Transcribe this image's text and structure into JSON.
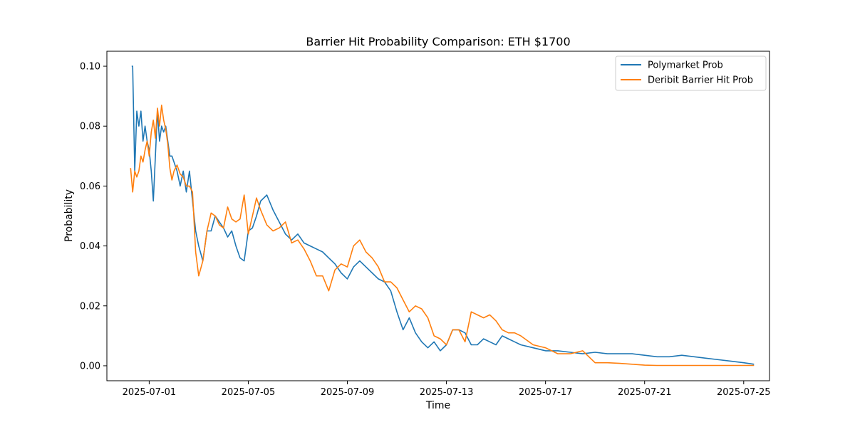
{
  "chart_data": {
    "type": "line",
    "title": "Barrier Hit Probability Comparison: ETH $1700",
    "xlabel": "Time",
    "ylabel": "Probability",
    "xlim": [
      "2025-06-29T07:00",
      "2025-07-26T01:00"
    ],
    "ylim": [
      -0.005,
      0.105
    ],
    "x_ticks": [
      "2025-07-01",
      "2025-07-05",
      "2025-07-09",
      "2025-07-13",
      "2025-07-17",
      "2025-07-21",
      "2025-07-25"
    ],
    "y_ticks": [
      "0.00",
      "0.02",
      "0.04",
      "0.06",
      "0.08",
      "0.10"
    ],
    "y_tick_values": [
      0.0,
      0.02,
      0.04,
      0.06,
      0.08,
      0.1
    ],
    "grid": false,
    "legend_position": "top-right",
    "series": [
      {
        "name": "Polymarket Prob",
        "color": "#1f77b4",
        "x": [
          "2025-06-30T07:00",
          "2025-06-30T08:00",
          "2025-06-30T10:00",
          "2025-06-30T12:00",
          "2025-06-30T14:00",
          "2025-06-30T16:00",
          "2025-06-30T18:00",
          "2025-06-30T20:00",
          "2025-06-30T22:00",
          "2025-07-01T00:00",
          "2025-07-01T02:00",
          "2025-07-01T04:00",
          "2025-07-01T06:00",
          "2025-07-01T08:00",
          "2025-07-01T10:00",
          "2025-07-01T12:00",
          "2025-07-01T14:00",
          "2025-07-01T16:00",
          "2025-07-01T18:00",
          "2025-07-01T20:00",
          "2025-07-01T22:00",
          "2025-07-02T00:00",
          "2025-07-02T03:00",
          "2025-07-02T06:00",
          "2025-07-02T09:00",
          "2025-07-02T12:00",
          "2025-07-02T15:00",
          "2025-07-02T18:00",
          "2025-07-02T21:00",
          "2025-07-03T00:00",
          "2025-07-03T04:00",
          "2025-07-03T08:00",
          "2025-07-03T12:00",
          "2025-07-03T16:00",
          "2025-07-03T20:00",
          "2025-07-04T00:00",
          "2025-07-04T04:00",
          "2025-07-04T08:00",
          "2025-07-04T12:00",
          "2025-07-04T16:00",
          "2025-07-04T20:00",
          "2025-07-05T00:00",
          "2025-07-05T04:00",
          "2025-07-05T08:00",
          "2025-07-05T12:00",
          "2025-07-05T18:00",
          "2025-07-06T00:00",
          "2025-07-06T06:00",
          "2025-07-06T12:00",
          "2025-07-06T18:00",
          "2025-07-07T00:00",
          "2025-07-07T06:00",
          "2025-07-07T12:00",
          "2025-07-07T18:00",
          "2025-07-08T00:00",
          "2025-07-08T06:00",
          "2025-07-08T12:00",
          "2025-07-08T18:00",
          "2025-07-09T00:00",
          "2025-07-09T06:00",
          "2025-07-09T12:00",
          "2025-07-09T18:00",
          "2025-07-10T00:00",
          "2025-07-10T06:00",
          "2025-07-10T12:00",
          "2025-07-10T18:00",
          "2025-07-11T00:00",
          "2025-07-11T06:00",
          "2025-07-11T12:00",
          "2025-07-11T18:00",
          "2025-07-12T00:00",
          "2025-07-12T06:00",
          "2025-07-12T12:00",
          "2025-07-12T18:00",
          "2025-07-13T00:00",
          "2025-07-13T06:00",
          "2025-07-13T12:00",
          "2025-07-13T18:00",
          "2025-07-14T00:00",
          "2025-07-14T06:00",
          "2025-07-14T12:00",
          "2025-07-14T18:00",
          "2025-07-15T00:00",
          "2025-07-15T06:00",
          "2025-07-15T12:00",
          "2025-07-15T18:00",
          "2025-07-16T00:00",
          "2025-07-16T12:00",
          "2025-07-17T00:00",
          "2025-07-17T12:00",
          "2025-07-18T00:00",
          "2025-07-18T12:00",
          "2025-07-19T00:00",
          "2025-07-19T12:00",
          "2025-07-20T00:00",
          "2025-07-20T12:00",
          "2025-07-21T00:00",
          "2025-07-21T12:00",
          "2025-07-22T00:00",
          "2025-07-22T12:00",
          "2025-07-23T00:00",
          "2025-07-23T12:00",
          "2025-07-24T00:00",
          "2025-07-24T12:00",
          "2025-07-25T00:00",
          "2025-07-25T10:00"
        ],
        "y": [
          0.1,
          0.1,
          0.065,
          0.085,
          0.08,
          0.085,
          0.075,
          0.08,
          0.075,
          0.072,
          0.065,
          0.055,
          0.07,
          0.085,
          0.075,
          0.08,
          0.078,
          0.08,
          0.075,
          0.07,
          0.07,
          0.068,
          0.065,
          0.06,
          0.065,
          0.058,
          0.065,
          0.055,
          0.045,
          0.04,
          0.035,
          0.045,
          0.045,
          0.05,
          0.048,
          0.046,
          0.043,
          0.045,
          0.04,
          0.036,
          0.035,
          0.045,
          0.046,
          0.05,
          0.055,
          0.057,
          0.052,
          0.048,
          0.044,
          0.042,
          0.044,
          0.041,
          0.04,
          0.039,
          0.038,
          0.036,
          0.034,
          0.031,
          0.029,
          0.033,
          0.035,
          0.033,
          0.031,
          0.029,
          0.028,
          0.025,
          0.018,
          0.012,
          0.016,
          0.011,
          0.008,
          0.006,
          0.008,
          0.005,
          0.007,
          0.012,
          0.012,
          0.011,
          0.007,
          0.007,
          0.009,
          0.008,
          0.007,
          0.01,
          0.009,
          0.008,
          0.007,
          0.006,
          0.005,
          0.005,
          0.0045,
          0.004,
          0.0045,
          0.004,
          0.004,
          0.004,
          0.0035,
          0.003,
          0.003,
          0.0035,
          0.003,
          0.0025,
          0.002,
          0.0015,
          0.001,
          0.0005
        ]
      },
      {
        "name": "Deribit Barrier Hit Prob",
        "color": "#ff7f0e",
        "x": [
          "2025-06-30T06:00",
          "2025-06-30T08:00",
          "2025-06-30T10:00",
          "2025-06-30T12:00",
          "2025-06-30T14:00",
          "2025-06-30T16:00",
          "2025-06-30T18:00",
          "2025-06-30T20:00",
          "2025-06-30T22:00",
          "2025-07-01T00:00",
          "2025-07-01T02:00",
          "2025-07-01T04:00",
          "2025-07-01T06:00",
          "2025-07-01T08:00",
          "2025-07-01T10:00",
          "2025-07-01T12:00",
          "2025-07-01T14:00",
          "2025-07-01T16:00",
          "2025-07-01T18:00",
          "2025-07-01T20:00",
          "2025-07-01T22:00",
          "2025-07-02T00:00",
          "2025-07-02T03:00",
          "2025-07-02T06:00",
          "2025-07-02T09:00",
          "2025-07-02T12:00",
          "2025-07-02T15:00",
          "2025-07-02T18:00",
          "2025-07-02T21:00",
          "2025-07-03T00:00",
          "2025-07-03T04:00",
          "2025-07-03T08:00",
          "2025-07-03T12:00",
          "2025-07-03T16:00",
          "2025-07-03T20:00",
          "2025-07-04T00:00",
          "2025-07-04T04:00",
          "2025-07-04T08:00",
          "2025-07-04T12:00",
          "2025-07-04T16:00",
          "2025-07-04T20:00",
          "2025-07-05T00:00",
          "2025-07-05T04:00",
          "2025-07-05T08:00",
          "2025-07-05T12:00",
          "2025-07-05T18:00",
          "2025-07-06T00:00",
          "2025-07-06T06:00",
          "2025-07-06T12:00",
          "2025-07-06T18:00",
          "2025-07-07T00:00",
          "2025-07-07T06:00",
          "2025-07-07T12:00",
          "2025-07-07T18:00",
          "2025-07-08T00:00",
          "2025-07-08T06:00",
          "2025-07-08T12:00",
          "2025-07-08T18:00",
          "2025-07-09T00:00",
          "2025-07-09T06:00",
          "2025-07-09T12:00",
          "2025-07-09T18:00",
          "2025-07-10T00:00",
          "2025-07-10T06:00",
          "2025-07-10T12:00",
          "2025-07-10T18:00",
          "2025-07-11T00:00",
          "2025-07-11T06:00",
          "2025-07-11T12:00",
          "2025-07-11T18:00",
          "2025-07-12T00:00",
          "2025-07-12T06:00",
          "2025-07-12T12:00",
          "2025-07-12T18:00",
          "2025-07-13T00:00",
          "2025-07-13T06:00",
          "2025-07-13T12:00",
          "2025-07-13T18:00",
          "2025-07-14T00:00",
          "2025-07-14T06:00",
          "2025-07-14T12:00",
          "2025-07-14T18:00",
          "2025-07-15T00:00",
          "2025-07-15T06:00",
          "2025-07-15T12:00",
          "2025-07-15T18:00",
          "2025-07-16T00:00",
          "2025-07-16T12:00",
          "2025-07-17T00:00",
          "2025-07-17T12:00",
          "2025-07-18T00:00",
          "2025-07-18T12:00",
          "2025-07-19T00:00",
          "2025-07-19T12:00",
          "2025-07-20T00:00",
          "2025-07-20T12:00",
          "2025-07-21T00:00",
          "2025-07-21T12:00",
          "2025-07-22T00:00",
          "2025-07-22T12:00",
          "2025-07-23T00:00",
          "2025-07-23T12:00",
          "2025-07-24T00:00",
          "2025-07-24T12:00",
          "2025-07-25T00:00",
          "2025-07-25T10:00"
        ],
        "y": [
          0.066,
          0.058,
          0.065,
          0.063,
          0.065,
          0.07,
          0.068,
          0.072,
          0.075,
          0.07,
          0.078,
          0.082,
          0.076,
          0.086,
          0.08,
          0.087,
          0.082,
          0.079,
          0.074,
          0.066,
          0.062,
          0.065,
          0.067,
          0.064,
          0.063,
          0.06,
          0.06,
          0.058,
          0.038,
          0.03,
          0.035,
          0.045,
          0.051,
          0.05,
          0.047,
          0.046,
          0.053,
          0.049,
          0.048,
          0.049,
          0.057,
          0.044,
          0.05,
          0.056,
          0.052,
          0.047,
          0.045,
          0.046,
          0.048,
          0.041,
          0.042,
          0.039,
          0.035,
          0.03,
          0.03,
          0.025,
          0.032,
          0.034,
          0.033,
          0.04,
          0.042,
          0.038,
          0.036,
          0.033,
          0.028,
          0.028,
          0.026,
          0.022,
          0.018,
          0.02,
          0.019,
          0.016,
          0.01,
          0.009,
          0.007,
          0.012,
          0.012,
          0.008,
          0.018,
          0.017,
          0.016,
          0.017,
          0.015,
          0.012,
          0.011,
          0.011,
          0.01,
          0.007,
          0.006,
          0.004,
          0.004,
          0.005,
          0.001,
          0.001,
          0.0008,
          0.0005,
          0.0002,
          0.0001,
          0.0001,
          0.0001,
          0.0001,
          0.0001,
          0.0001,
          0.0001,
          0.0001,
          0.0001
        ]
      }
    ]
  }
}
